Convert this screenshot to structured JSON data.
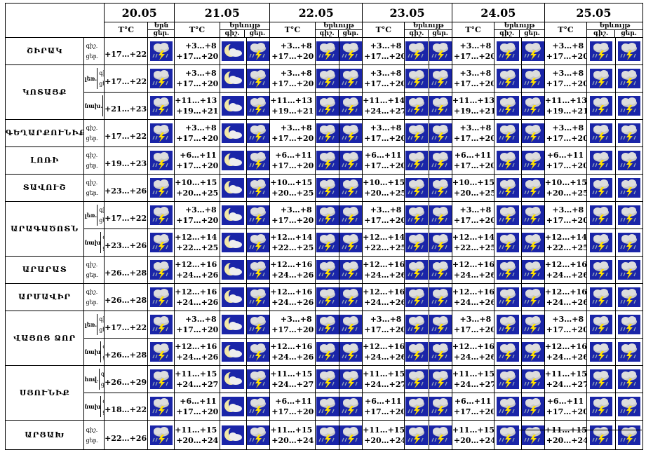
{
  "header": {
    "dates": [
      "20.05",
      "21.05",
      "22.05",
      "23.05",
      "24.05",
      "25.05"
    ],
    "temp_label": "T°C",
    "weather_label_short": "Երն",
    "weather_label": "Երևույթ",
    "day_label": "ցեր.",
    "night_label": "գիշ."
  },
  "row_labels": {
    "night": "գիշ.",
    "day": "ցեր."
  },
  "day1_temps": [
    "+17…+22",
    "+17…+22",
    "+21…+23",
    "+17…+22",
    "+19…+23",
    "+23…+26",
    "+17…+22",
    "+23…+26",
    "+26…+28",
    "+26…+28",
    "+17…+22",
    "+26…+28",
    "+26…+29",
    "+18…+22",
    "+22…+26"
  ],
  "regions": [
    {
      "name": "ՇԻՐԱԿ",
      "sub": "",
      "night": "+3…+8",
      "day": "+17…+20"
    },
    {
      "name": "ԿՈՏԱՅՔ",
      "sub": "լեռ.",
      "night": "+3…+8",
      "day": "+17…+20"
    },
    {
      "name": "",
      "sub": "նախ.",
      "night": "+11…+13",
      "day": "+19…+21"
    },
    {
      "name": "ԳԵՂԱՐՔՈՒՆԻՔ",
      "sub": "",
      "night": "+3…+8",
      "day": "+17…+20"
    },
    {
      "name": "ԼՈՌԻ",
      "sub": "",
      "night": "+6…+11",
      "day": "+17…+20"
    },
    {
      "name": "ՏԱՎՈՒՇ",
      "sub": "",
      "night": "+10…+15",
      "day": "+20…+25"
    },
    {
      "name": "ԱՐԱԳԱԾՈՏՆ",
      "sub": "լեռ.",
      "night": "+3…+8",
      "day": "+17…+20"
    },
    {
      "name": "",
      "sub": "նախ",
      "night": "+12…+14",
      "day": "+22…+25"
    },
    {
      "name": "ԱՐԱՐԱՏ",
      "sub": "",
      "night": "+12…+16",
      "day": "+24…+26"
    },
    {
      "name": "ԱՐՄԱՎԻՐ",
      "sub": "",
      "night": "+12…+16",
      "day": "+24…+26"
    },
    {
      "name": "ՎԱՅՈՑ ՁՈՐ",
      "sub": "լեռ.",
      "night": "+3…+8",
      "day": "+17…+20"
    },
    {
      "name": "",
      "sub": "նախ",
      "night": "+12…+16",
      "day": "+24…+26"
    },
    {
      "name": "ՍՅՈՒՆԻՔ",
      "sub": "հով.",
      "night": "+11…+15",
      "day": "+24…+27"
    },
    {
      "name": "",
      "sub": "նախ",
      "night": "+6…+11",
      "day": "+17…+20"
    },
    {
      "name": "ԱՐՑԱԽ",
      "sub": "",
      "night": "+11…+15",
      "day": "+20…+24"
    }
  ],
  "day_overrides": {
    "3": {
      "2": [
        "+11…+14",
        "+24…+27"
      ]
    }
  },
  "icons": {
    "day1": "cloud-rain-lightning-icon",
    "day2_night": "moon-cloud-icon",
    "day2_day": "cloud-rain-lightning-icon",
    "other": "cloud-rain-lightning-icon"
  },
  "colors": {
    "icon_bg": "#1a25a8",
    "cloud": "#c8c8c8",
    "lightning": "#ffe000",
    "moon": "#f2e8a8"
  }
}
